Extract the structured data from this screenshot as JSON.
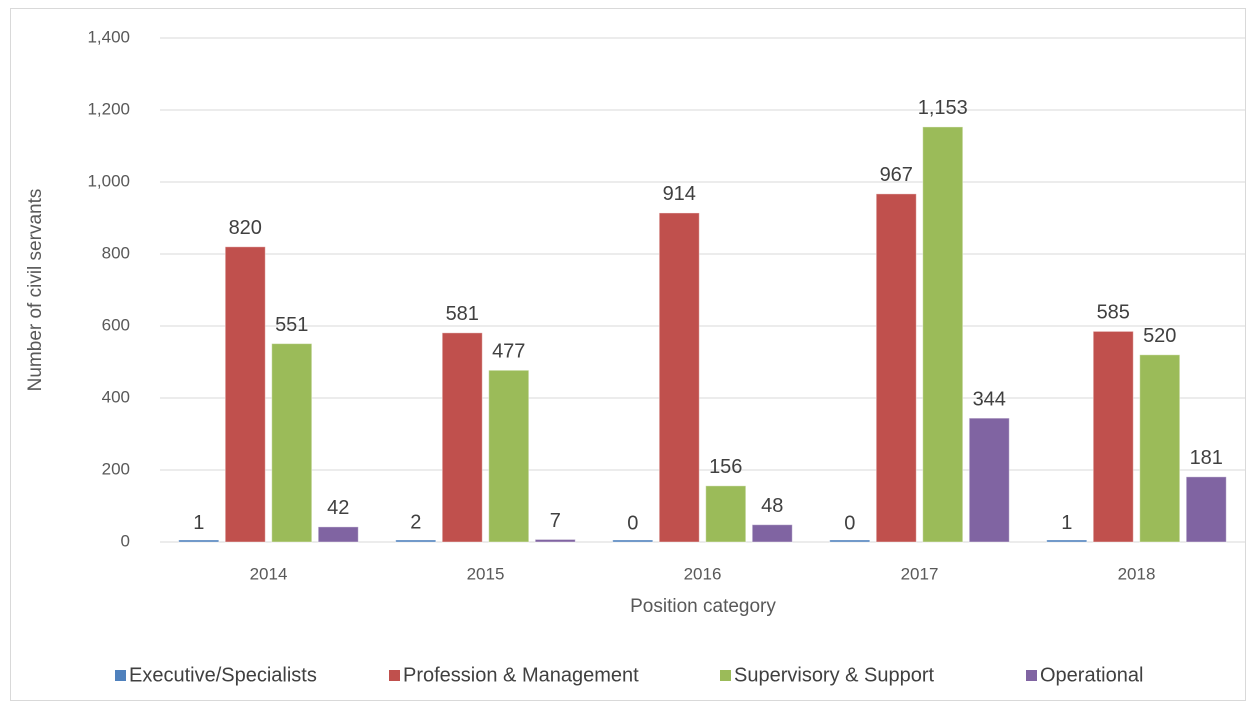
{
  "chart_data": {
    "type": "bar",
    "x_label": "Position category",
    "y_label": "Number of civil servants",
    "categories": [
      "2014",
      "2015",
      "2016",
      "2017",
      "2018"
    ],
    "series": [
      {
        "name": "Executive/Specialists",
        "color": "#4f81bd",
        "values": [
          1,
          2,
          0,
          0,
          1
        ]
      },
      {
        "name": "Profession & Management",
        "color": "#c0504d",
        "values": [
          820,
          581,
          914,
          967,
          585
        ]
      },
      {
        "name": "Supervisory & Support",
        "color": "#9bbb59",
        "values": [
          551,
          477,
          156,
          1153,
          520
        ],
        "value_labels": [
          "551",
          "477",
          "156",
          "1,153",
          "520"
        ]
      },
      {
        "name": "Operational",
        "color": "#8064a2",
        "values": [
          42,
          7,
          48,
          344,
          181
        ]
      }
    ],
    "ylim": [
      0,
      1400
    ],
    "yticks": [
      0,
      200,
      400,
      600,
      800,
      {
        "value": 1000,
        "label": "1,000"
      },
      {
        "value": 1200,
        "label": "1,200"
      },
      {
        "value": 1400,
        "label": "1,400"
      }
    ],
    "grid": true,
    "legend": "bottom"
  }
}
